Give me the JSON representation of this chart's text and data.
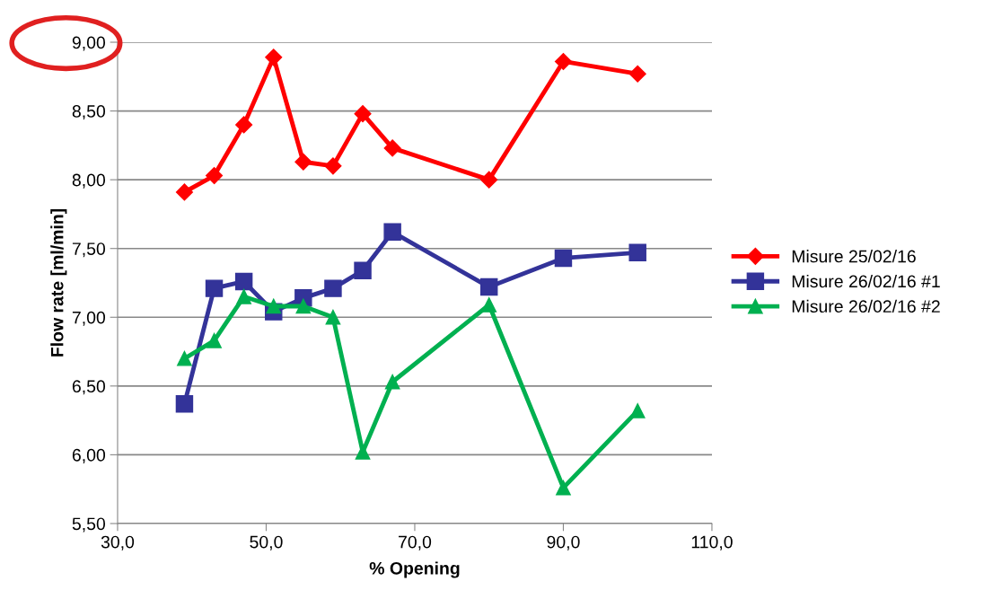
{
  "chart_data": {
    "type": "line",
    "xlabel": "% Opening",
    "ylabel": "Flow rate [ml/min]",
    "x": [
      39,
      43,
      47,
      51,
      55,
      59,
      63,
      67,
      80,
      90,
      100
    ],
    "series": [
      {
        "name": "Misure 25/02/16",
        "color": "#ff0000",
        "marker": "diamond",
        "values": [
          7.91,
          8.03,
          8.4,
          8.89,
          8.13,
          8.1,
          8.48,
          8.23,
          8.0,
          8.86,
          8.77
        ]
      },
      {
        "name": "Misure 26/02/16 #1",
        "color": "#333399",
        "marker": "square",
        "values": [
          6.37,
          7.21,
          7.26,
          7.04,
          7.14,
          7.21,
          7.34,
          7.62,
          7.22,
          7.43,
          7.47
        ]
      },
      {
        "name": "Misure 26/02/16 #2",
        "color": "#00b050",
        "marker": "triangle",
        "values": [
          6.7,
          6.83,
          7.15,
          7.08,
          7.08,
          7.0,
          6.02,
          6.53,
          7.09,
          5.76,
          6.32
        ]
      }
    ],
    "xlim": [
      30,
      110
    ],
    "xticks": [
      {
        "value": 30,
        "label": "30,0"
      },
      {
        "value": 50,
        "label": "50,0"
      },
      {
        "value": 70,
        "label": "70,0"
      },
      {
        "value": 90,
        "label": "90,0"
      },
      {
        "value": 110,
        "label": "110,0"
      }
    ],
    "ylim": [
      5.5,
      9.0
    ],
    "yticks": [
      {
        "value": 5.5,
        "label": "5,50"
      },
      {
        "value": 6.0,
        "label": "6,00"
      },
      {
        "value": 6.5,
        "label": "6,50"
      },
      {
        "value": 7.0,
        "label": "7,00"
      },
      {
        "value": 7.5,
        "label": "7,50"
      },
      {
        "value": 8.0,
        "label": "8,00"
      },
      {
        "value": 8.5,
        "label": "8,50"
      },
      {
        "value": 9.0,
        "label": "9,00"
      }
    ],
    "grid": "y",
    "legend": "right",
    "line_style": "solid"
  }
}
